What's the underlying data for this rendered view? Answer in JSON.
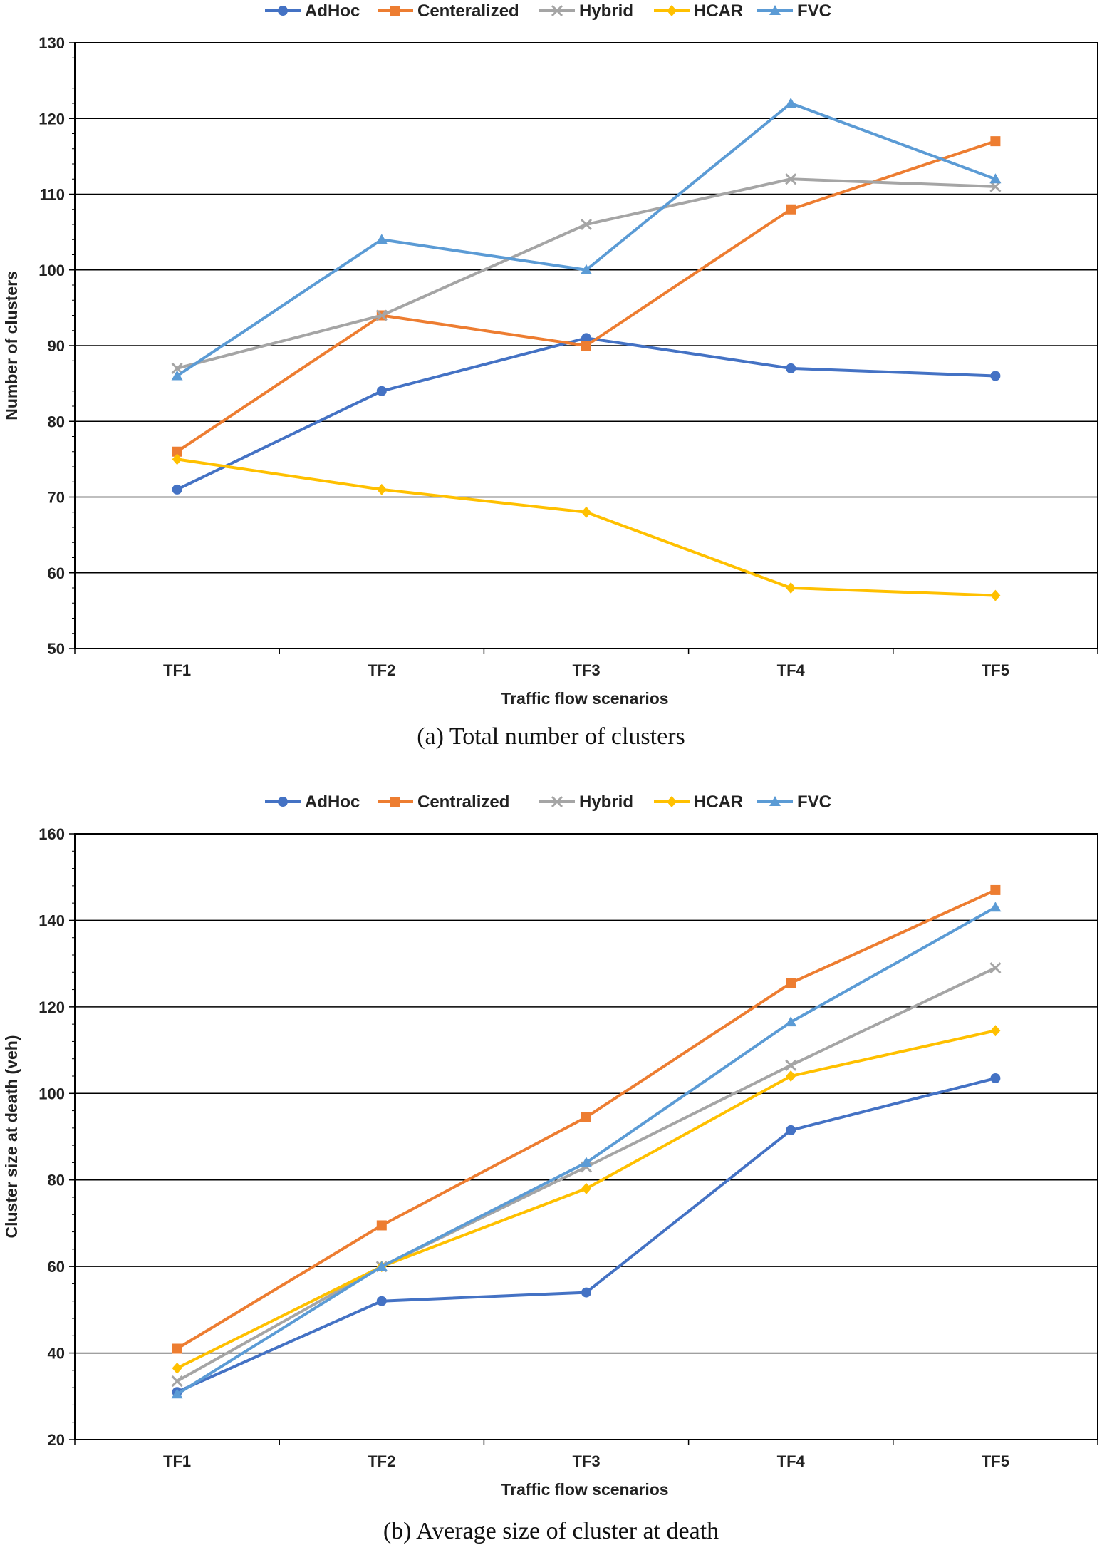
{
  "chart_data": [
    {
      "type": "line",
      "title": "",
      "caption": "(a) Total number of clusters",
      "xlabel": "Traffic flow scenarios",
      "ylabel": "Number of clusters",
      "categories": [
        "TF1",
        "TF2",
        "TF3",
        "TF4",
        "TF5"
      ],
      "ylim": [
        50,
        130
      ],
      "yticks": [
        50,
        60,
        70,
        80,
        90,
        100,
        110,
        120,
        130
      ],
      "grid": true,
      "legend_position": "top",
      "series": [
        {
          "name": "AdHoc",
          "color": "#4472C4",
          "marker": "circle",
          "values": [
            71,
            84,
            91,
            87,
            86
          ]
        },
        {
          "name": "Centeralized",
          "color": "#ED7D31",
          "marker": "square",
          "values": [
            76,
            94,
            90,
            108,
            117
          ]
        },
        {
          "name": "Hybrid",
          "color": "#A5A5A5",
          "marker": "x",
          "values": [
            87,
            94,
            106,
            112,
            111
          ]
        },
        {
          "name": "HCAR",
          "color": "#FFC000",
          "marker": "diamond",
          "values": [
            75,
            71,
            68,
            58,
            57
          ]
        },
        {
          "name": "FVC",
          "color": "#5B9BD5",
          "marker": "triangle",
          "values": [
            86,
            104,
            100,
            122,
            112
          ]
        }
      ]
    },
    {
      "type": "line",
      "title": "",
      "caption": "(b) Average size of cluster at death",
      "xlabel": "Traffic flow scenarios",
      "ylabel": "Cluster size at death (veh)",
      "categories": [
        "TF1",
        "TF2",
        "TF3",
        "TF4",
        "TF5"
      ],
      "ylim": [
        20,
        160
      ],
      "yticks": [
        20,
        40,
        60,
        80,
        100,
        120,
        140,
        160
      ],
      "grid": true,
      "legend_position": "top",
      "series": [
        {
          "name": "AdHoc",
          "color": "#4472C4",
          "marker": "circle",
          "values": [
            31,
            52,
            54,
            91.5,
            103.5
          ]
        },
        {
          "name": "Centralized",
          "color": "#ED7D31",
          "marker": "square",
          "values": [
            41,
            69.5,
            94.5,
            125.5,
            147
          ]
        },
        {
          "name": "Hybrid",
          "color": "#A5A5A5",
          "marker": "x",
          "values": [
            33.5,
            60,
            83,
            106.5,
            129
          ]
        },
        {
          "name": "HCAR",
          "color": "#FFC000",
          "marker": "diamond",
          "values": [
            36.5,
            60,
            78,
            104,
            114.5
          ]
        },
        {
          "name": "FVC",
          "color": "#5B9BD5",
          "marker": "triangle",
          "values": [
            30.5,
            60,
            84,
            116.5,
            143
          ]
        }
      ]
    }
  ]
}
